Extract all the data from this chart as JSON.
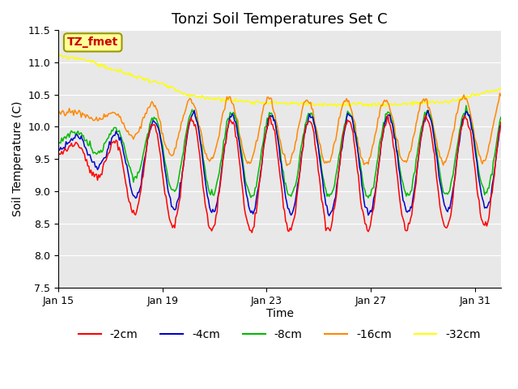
{
  "title": "Tonzi Soil Temperatures Set C",
  "xlabel": "Time",
  "ylabel": "Soil Temperature (C)",
  "ylim": [
    7.5,
    11.5
  ],
  "yticks": [
    7.5,
    8.0,
    8.5,
    9.0,
    9.5,
    10.0,
    10.5,
    11.0,
    11.5
  ],
  "xtick_labels": [
    "Jan 15",
    "Jan 19",
    "Jan 23",
    "Jan 27",
    "Jan 31"
  ],
  "xtick_positions": [
    0,
    4,
    8,
    12,
    16
  ],
  "series_colors": [
    "#ff0000",
    "#0000cc",
    "#00bb00",
    "#ff8800",
    "#ffff00"
  ],
  "series_labels": [
    "-2cm",
    "-4cm",
    "-8cm",
    "-16cm",
    "-32cm"
  ],
  "annotation_text": "TZ_fmet",
  "annotation_bg": "#ffff99",
  "annotation_fg": "#cc0000",
  "background_color": "#e8e8e8",
  "grid_color": "#ffffff",
  "title_fontsize": 13,
  "label_fontsize": 10,
  "tick_fontsize": 9,
  "legend_fontsize": 10,
  "n_points": 408
}
